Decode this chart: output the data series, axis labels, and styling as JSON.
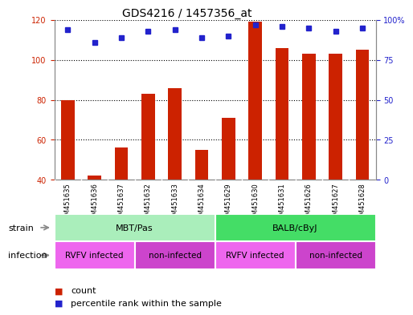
{
  "title": "GDS4216 / 1457356_at",
  "categories": [
    "GSM451635",
    "GSM451636",
    "GSM451637",
    "GSM451632",
    "GSM451633",
    "GSM451634",
    "GSM451629",
    "GSM451630",
    "GSM451631",
    "GSM451626",
    "GSM451627",
    "GSM451628"
  ],
  "bar_values": [
    80,
    42,
    56,
    83,
    86,
    55,
    71,
    119,
    106,
    103,
    103,
    105
  ],
  "dot_values_pct": [
    94,
    86,
    89,
    93,
    94,
    89,
    90,
    97,
    96,
    95,
    93,
    95
  ],
  "ylim_left": [
    40,
    120
  ],
  "ylim_right": [
    0,
    100
  ],
  "left_ticks": [
    40,
    60,
    80,
    100,
    120
  ],
  "right_ticks": [
    0,
    25,
    50,
    75,
    100
  ],
  "bar_color": "#cc2200",
  "dot_color": "#2222cc",
  "grid_color": "#000000",
  "strain_items": [
    {
      "text": "MBT/Pas",
      "start": 0,
      "end": 6,
      "color": "#aaeebb"
    },
    {
      "text": "BALB/cByJ",
      "start": 6,
      "end": 12,
      "color": "#44dd66"
    }
  ],
  "infection_items": [
    {
      "text": "RVFV infected",
      "start": 0,
      "end": 3,
      "color": "#ee66ee"
    },
    {
      "text": "non-infected",
      "start": 3,
      "end": 6,
      "color": "#cc44cc"
    },
    {
      "text": "RVFV infected",
      "start": 6,
      "end": 9,
      "color": "#ee66ee"
    },
    {
      "text": "non-infected",
      "start": 9,
      "end": 12,
      "color": "#cc44cc"
    }
  ],
  "bar_color_legend": "#cc2200",
  "dot_color_legend": "#2222cc",
  "left_axis_color": "#cc2200",
  "right_axis_color": "#2222cc",
  "title_fontsize": 10,
  "tick_fontsize": 7,
  "xtick_fontsize": 6,
  "label_fontsize": 8,
  "annotation_fontsize": 8,
  "xtick_bg_color": "#cccccc",
  "figure_bg": "#ffffff"
}
